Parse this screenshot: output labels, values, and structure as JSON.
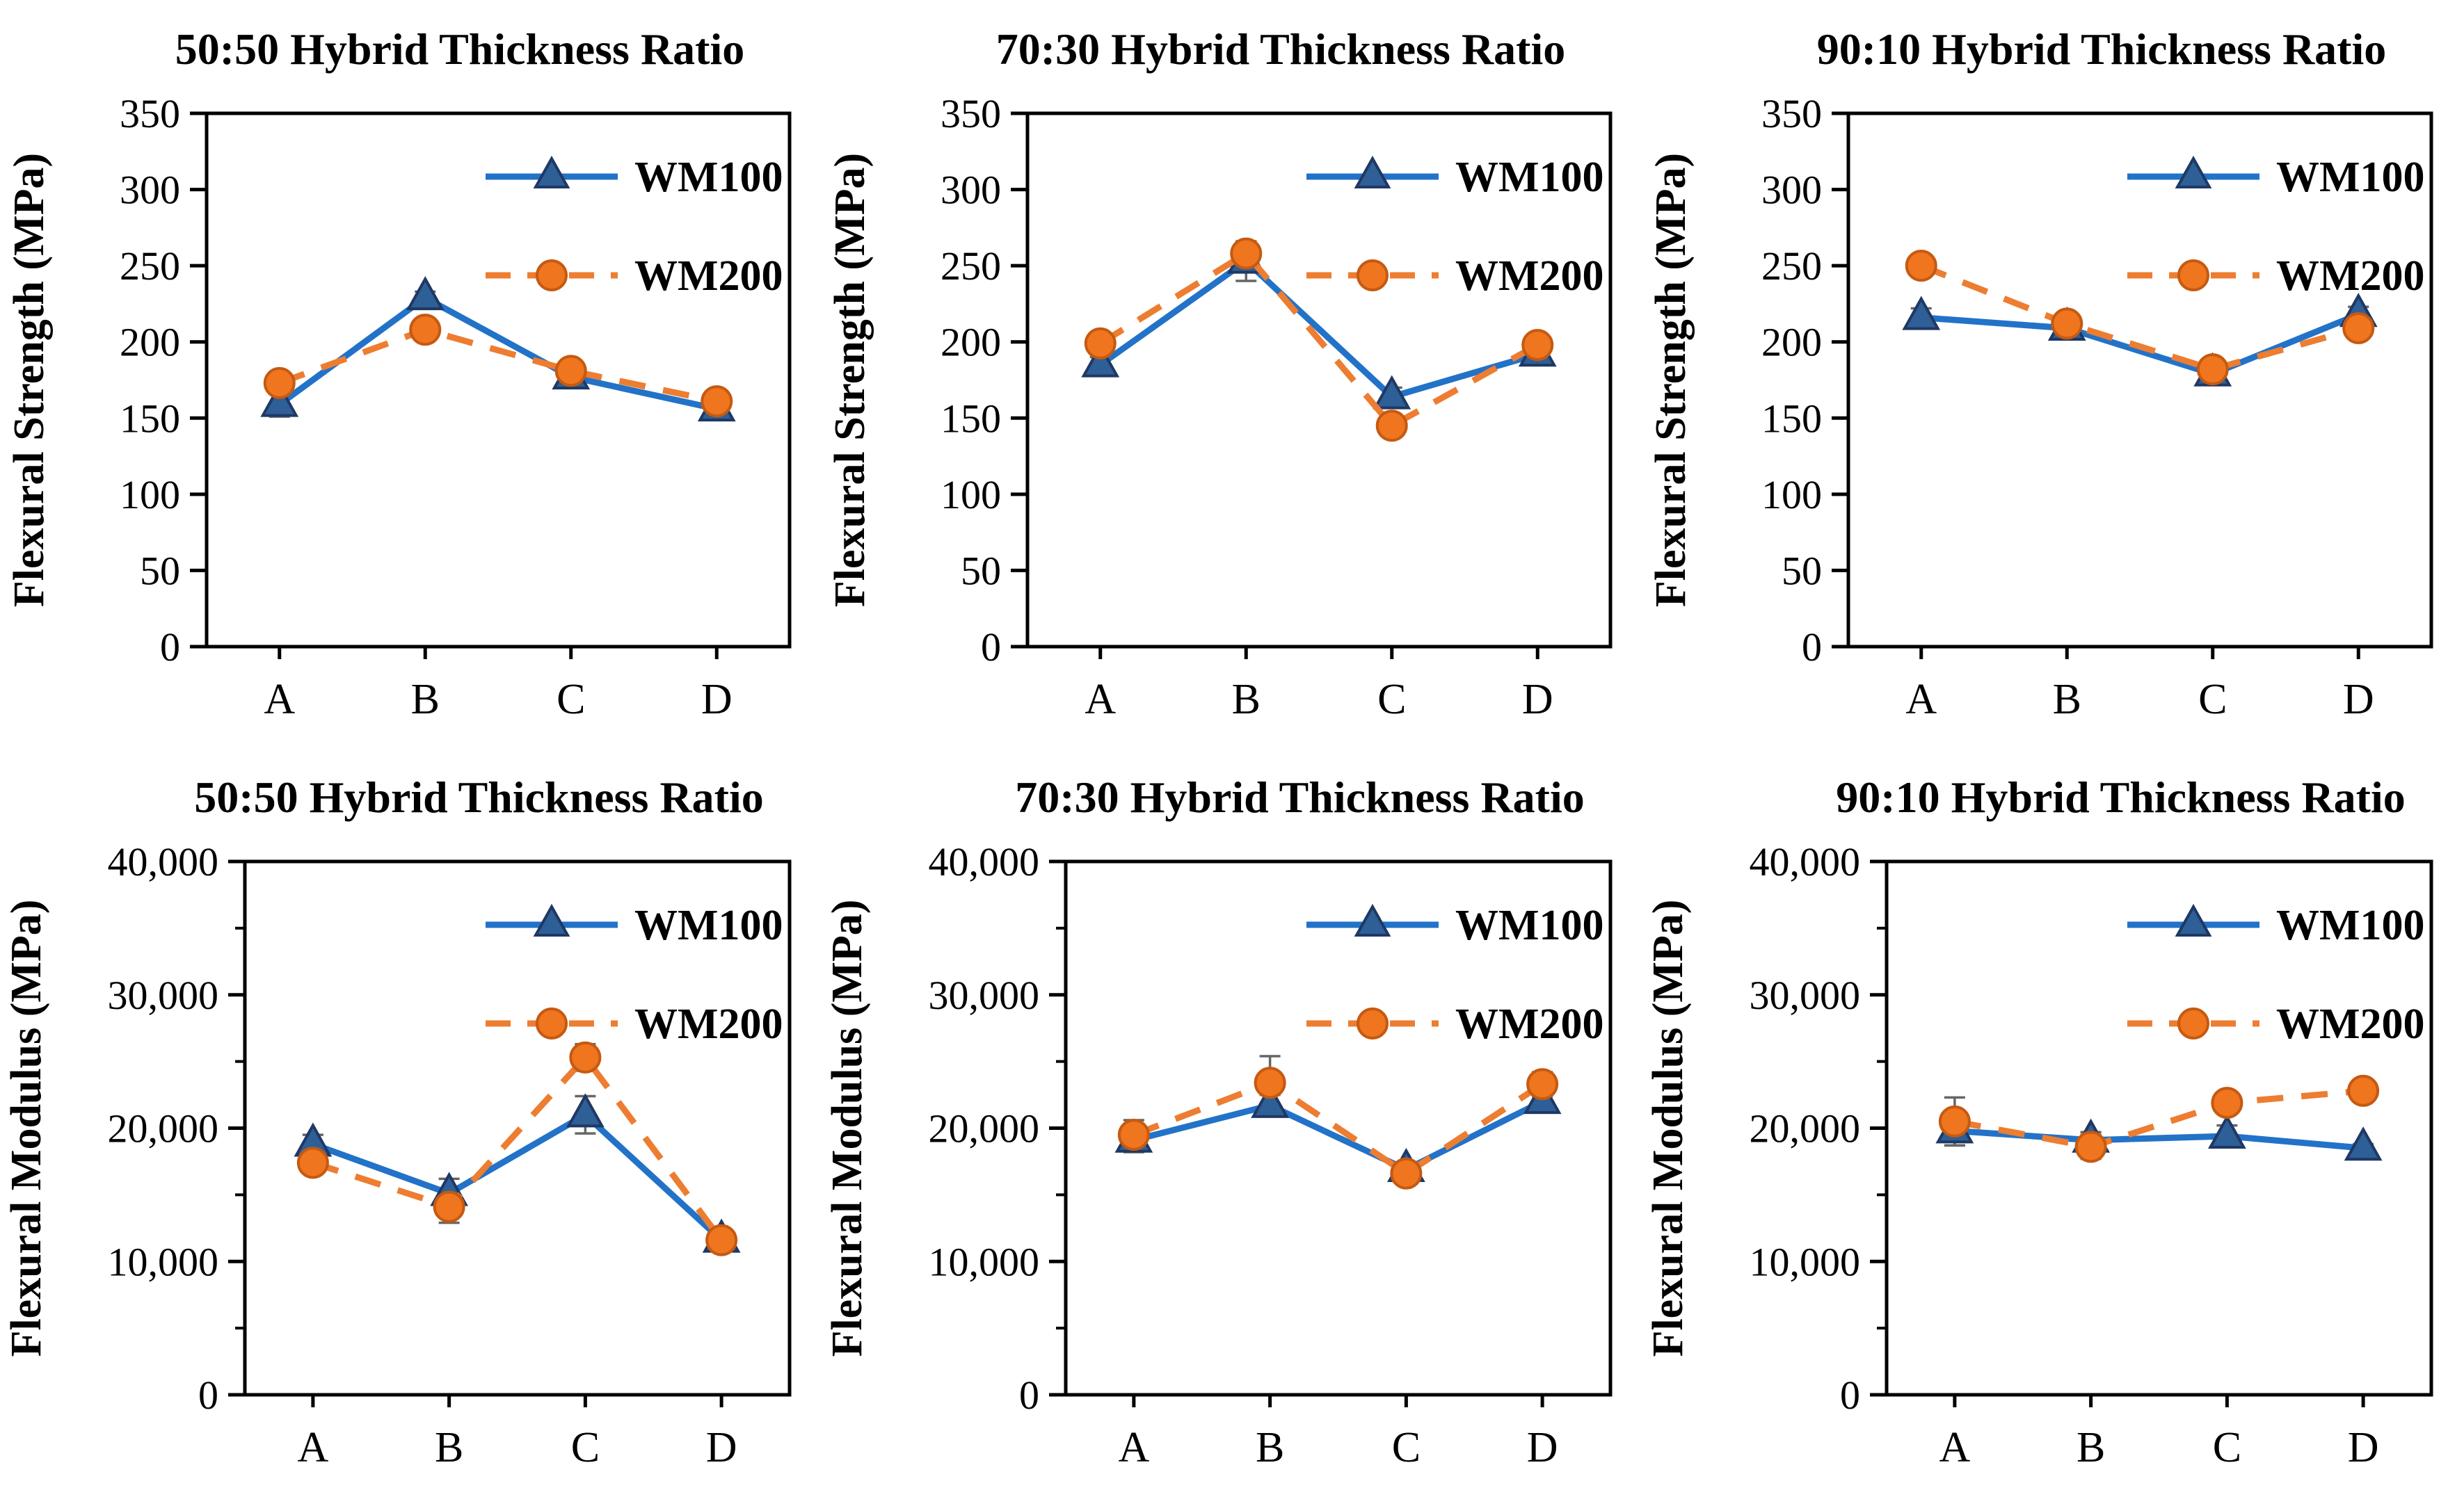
{
  "page": {
    "background": "#ffffff"
  },
  "colors": {
    "wm100_line": "#2272C8",
    "wm100_marker_fill": "#2E5F96",
    "wm100_marker_stroke": "#1F3864",
    "wm200_line": "#ED7D31",
    "wm200_marker_fill": "#F0751F",
    "wm200_marker_stroke": "#C55A11",
    "axis": "#000000",
    "error_bar": "#666666"
  },
  "legend": {
    "entries": [
      "WM100",
      "WM200"
    ]
  },
  "chart_data": [
    {
      "id": "strength-50-50",
      "type": "line",
      "title": "50:50 Hybrid Thickness Ratio",
      "ylabel": "Flexural Strength (MPa)",
      "xlabel": "",
      "categories": [
        "A",
        "B",
        "C",
        "D"
      ],
      "ylim": [
        0,
        350
      ],
      "grid": false,
      "legend_position": "top-right",
      "yticks": [
        {
          "v": 0,
          "label": "0"
        },
        {
          "v": 50,
          "label": "50"
        },
        {
          "v": 100,
          "label": "100"
        },
        {
          "v": 150,
          "label": "150"
        },
        {
          "v": 200,
          "label": "200"
        },
        {
          "v": 250,
          "label": "250"
        },
        {
          "v": 300,
          "label": "300"
        },
        {
          "v": 350,
          "label": "350"
        }
      ],
      "y_minor_ticks": [],
      "series": [
        {
          "name": "WM100",
          "marker": "triangle",
          "line_style": "solid",
          "values": [
            159,
            229,
            177,
            156
          ],
          "err": [
            8,
            4,
            7,
            5
          ]
        },
        {
          "name": "WM200",
          "marker": "circle",
          "line_style": "dashed",
          "values": [
            173,
            208,
            181,
            161
          ],
          "err": [
            7,
            4,
            5,
            4
          ]
        }
      ]
    },
    {
      "id": "strength-70-30",
      "type": "line",
      "title": "70:30 Hybrid Thickness Ratio",
      "ylabel": "Flexural Strength (MPa)",
      "xlabel": "",
      "categories": [
        "A",
        "B",
        "C",
        "D"
      ],
      "ylim": [
        0,
        350
      ],
      "grid": false,
      "legend_position": "top-right",
      "yticks": [
        {
          "v": 0,
          "label": "0"
        },
        {
          "v": 50,
          "label": "50"
        },
        {
          "v": 100,
          "label": "100"
        },
        {
          "v": 150,
          "label": "150"
        },
        {
          "v": 200,
          "label": "200"
        },
        {
          "v": 250,
          "label": "250"
        },
        {
          "v": 300,
          "label": "300"
        },
        {
          "v": 350,
          "label": "350"
        }
      ],
      "y_minor_ticks": [],
      "series": [
        {
          "name": "WM100",
          "marker": "triangle",
          "line_style": "solid",
          "values": [
            185,
            253,
            164,
            192
          ],
          "err": [
            5,
            13,
            6,
            4
          ]
        },
        {
          "name": "WM200",
          "marker": "circle",
          "line_style": "dashed",
          "values": [
            199,
            258,
            145,
            198
          ],
          "err": [
            5,
            8,
            5,
            4
          ]
        }
      ]
    },
    {
      "id": "strength-90-10",
      "type": "line",
      "title": "90:10 Hybrid Thickness Ratio",
      "ylabel": "Flexural Strength (MPa)",
      "xlabel": "",
      "categories": [
        "A",
        "B",
        "C",
        "D"
      ],
      "ylim": [
        0,
        350
      ],
      "grid": false,
      "legend_position": "top-right",
      "yticks": [
        {
          "v": 0,
          "label": "0"
        },
        {
          "v": 50,
          "label": "50"
        },
        {
          "v": 100,
          "label": "100"
        },
        {
          "v": 150,
          "label": "150"
        },
        {
          "v": 200,
          "label": "200"
        },
        {
          "v": 250,
          "label": "250"
        },
        {
          "v": 300,
          "label": "300"
        },
        {
          "v": 350,
          "label": "350"
        }
      ],
      "y_minor_ticks": [],
      "series": [
        {
          "name": "WM100",
          "marker": "triangle",
          "line_style": "solid",
          "values": [
            216,
            209,
            179,
            218
          ],
          "err": [
            6,
            5,
            7,
            5
          ]
        },
        {
          "name": "WM200",
          "marker": "circle",
          "line_style": "dashed",
          "values": [
            250,
            212,
            182,
            209
          ],
          "err": [
            5,
            5,
            6,
            4
          ]
        }
      ]
    },
    {
      "id": "modulus-50-50",
      "type": "line",
      "title": "50:50 Hybrid Thickness Ratio",
      "ylabel": "Flexural Modulus (MPa)",
      "xlabel": "",
      "categories": [
        "A",
        "B",
        "C",
        "D"
      ],
      "ylim": [
        0,
        40000
      ],
      "grid": false,
      "legend_position": "top-right",
      "yticks": [
        {
          "v": 0,
          "label": "0"
        },
        {
          "v": 10000,
          "label": "10,000"
        },
        {
          "v": 20000,
          "label": "20,000"
        },
        {
          "v": 30000,
          "label": "30,000"
        },
        {
          "v": 40000,
          "label": "40,000"
        }
      ],
      "y_minor_ticks": [
        5000,
        15000,
        25000,
        35000
      ],
      "series": [
        {
          "name": "WM100",
          "marker": "triangle",
          "line_style": "solid",
          "values": [
            18800,
            15100,
            21000,
            11600
          ],
          "err": [
            700,
            1100,
            1400,
            500
          ]
        },
        {
          "name": "WM200",
          "marker": "circle",
          "line_style": "dashed",
          "values": [
            17400,
            14100,
            25300,
            11600
          ],
          "err": [
            800,
            1200,
            1000,
            600
          ]
        }
      ]
    },
    {
      "id": "modulus-70-30",
      "type": "line",
      "title": "70:30 Hybrid Thickness Ratio",
      "ylabel": "Flexural Modulus (MPa)",
      "xlabel": "",
      "categories": [
        "A",
        "B",
        "C",
        "D"
      ],
      "ylim": [
        0,
        40000
      ],
      "grid": false,
      "legend_position": "top-right",
      "yticks": [
        {
          "v": 0,
          "label": "0"
        },
        {
          "v": 10000,
          "label": "10,000"
        },
        {
          "v": 20000,
          "label": "20,000"
        },
        {
          "v": 30000,
          "label": "30,000"
        },
        {
          "v": 40000,
          "label": "40,000"
        }
      ],
      "y_minor_ticks": [
        5000,
        15000,
        25000,
        35000
      ],
      "series": [
        {
          "name": "WM100",
          "marker": "triangle",
          "line_style": "solid",
          "values": [
            19100,
            21700,
            16900,
            22000
          ],
          "err": [
            900,
            800,
            500,
            400
          ]
        },
        {
          "name": "WM200",
          "marker": "circle",
          "line_style": "dashed",
          "values": [
            19500,
            23400,
            16600,
            23300
          ],
          "err": [
            1100,
            2000,
            500,
            900
          ]
        }
      ]
    },
    {
      "id": "modulus-90-10",
      "type": "line",
      "title": "90:10 Hybrid Thickness Ratio",
      "ylabel": "Flexural Modulus (MPa)",
      "xlabel": "",
      "categories": [
        "A",
        "B",
        "C",
        "D"
      ],
      "ylim": [
        0,
        40000
      ],
      "grid": false,
      "legend_position": "top-right",
      "yticks": [
        {
          "v": 0,
          "label": "0"
        },
        {
          "v": 10000,
          "label": "10,000"
        },
        {
          "v": 20000,
          "label": "20,000"
        },
        {
          "v": 30000,
          "label": "30,000"
        },
        {
          "v": 40000,
          "label": "40,000"
        }
      ],
      "y_minor_ticks": [
        5000,
        15000,
        25000,
        35000
      ],
      "series": [
        {
          "name": "WM100",
          "marker": "triangle",
          "line_style": "solid",
          "values": [
            19800,
            19100,
            19400,
            18500
          ],
          "err": [
            1100,
            600,
            800,
            300
          ]
        },
        {
          "name": "WM200",
          "marker": "circle",
          "line_style": "dashed",
          "values": [
            20500,
            18600,
            21900,
            22800
          ],
          "err": [
            1800,
            900,
            500,
            300
          ]
        }
      ]
    }
  ]
}
